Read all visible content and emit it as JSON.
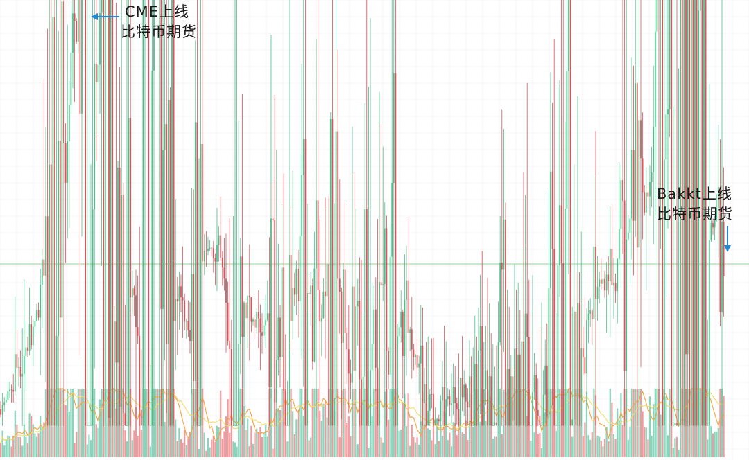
{
  "chart_data": {
    "type": "candlestick",
    "subtype": "price-candles-with-volume-bars",
    "title": "",
    "xlabel": "",
    "ylabel": "",
    "grid": true,
    "colors": {
      "up": "#4fbf8a",
      "down": "#e0525a",
      "volume_up": "#7ccfb4",
      "volume_down": "#ef8f94",
      "ma_fast": "#f4a340",
      "ma_slow": "#f0dc6a",
      "reference_line": "#8fd68f",
      "grid": "#eeeeee",
      "annotation_arrow": "#1e88d2"
    },
    "price_close_relative": [
      [
        0,
        0.04
      ],
      [
        10,
        0.06
      ],
      [
        18,
        0.1
      ],
      [
        28,
        0.16
      ],
      [
        38,
        0.19
      ],
      [
        48,
        0.22
      ],
      [
        58,
        0.3
      ],
      [
        66,
        0.26
      ],
      [
        75,
        0.34
      ],
      [
        85,
        0.44
      ],
      [
        93,
        0.56
      ],
      [
        100,
        0.76
      ],
      [
        105,
        0.92
      ],
      [
        112,
        0.98
      ],
      [
        118,
        0.94
      ],
      [
        125,
        0.82
      ],
      [
        132,
        0.74
      ],
      [
        140,
        0.81
      ],
      [
        148,
        0.76
      ],
      [
        155,
        0.62
      ],
      [
        162,
        0.54
      ],
      [
        170,
        0.44
      ],
      [
        178,
        0.38
      ],
      [
        186,
        0.3
      ],
      [
        192,
        0.32
      ],
      [
        198,
        0.4
      ],
      [
        206,
        0.5
      ],
      [
        214,
        0.52
      ],
      [
        222,
        0.5
      ],
      [
        230,
        0.52
      ],
      [
        238,
        0.46
      ],
      [
        246,
        0.4
      ],
      [
        254,
        0.38
      ],
      [
        262,
        0.28
      ],
      [
        270,
        0.26
      ],
      [
        280,
        0.28
      ],
      [
        290,
        0.36
      ],
      [
        300,
        0.42
      ],
      [
        310,
        0.44
      ],
      [
        320,
        0.42
      ],
      [
        330,
        0.36
      ],
      [
        340,
        0.34
      ],
      [
        350,
        0.3
      ],
      [
        362,
        0.26
      ],
      [
        374,
        0.24
      ],
      [
        386,
        0.22
      ],
      [
        398,
        0.23
      ],
      [
        410,
        0.24
      ],
      [
        420,
        0.32
      ],
      [
        432,
        0.36
      ],
      [
        444,
        0.32
      ],
      [
        456,
        0.26
      ],
      [
        466,
        0.22
      ],
      [
        478,
        0.24
      ],
      [
        490,
        0.28
      ],
      [
        502,
        0.24
      ],
      [
        515,
        0.22
      ],
      [
        530,
        0.24
      ],
      [
        545,
        0.24
      ],
      [
        560,
        0.23
      ],
      [
        575,
        0.22
      ],
      [
        590,
        0.22
      ],
      [
        598,
        0.18
      ],
      [
        605,
        0.12
      ],
      [
        612,
        0.08
      ],
      [
        620,
        0.05
      ],
      [
        628,
        0.01
      ],
      [
        636,
        0.03
      ],
      [
        645,
        0.06
      ],
      [
        655,
        0.08
      ],
      [
        668,
        0.08
      ],
      [
        680,
        0.07
      ],
      [
        692,
        0.06
      ],
      [
        705,
        0.05
      ],
      [
        718,
        0.06
      ],
      [
        730,
        0.07
      ],
      [
        742,
        0.09
      ],
      [
        755,
        0.08
      ],
      [
        768,
        0.09
      ],
      [
        780,
        0.1
      ],
      [
        790,
        0.11
      ],
      [
        800,
        0.14
      ],
      [
        812,
        0.16
      ],
      [
        825,
        0.16
      ],
      [
        836,
        0.18
      ],
      [
        846,
        0.22
      ],
      [
        855,
        0.3
      ],
      [
        864,
        0.34
      ],
      [
        872,
        0.35
      ],
      [
        880,
        0.38
      ],
      [
        888,
        0.34
      ],
      [
        896,
        0.36
      ],
      [
        904,
        0.42
      ],
      [
        910,
        0.54
      ],
      [
        916,
        0.66
      ],
      [
        922,
        0.6
      ],
      [
        930,
        0.58
      ],
      [
        940,
        0.55
      ],
      [
        948,
        0.46
      ],
      [
        956,
        0.44
      ],
      [
        964,
        0.5
      ],
      [
        972,
        0.58
      ],
      [
        980,
        0.57
      ],
      [
        988,
        0.48
      ],
      [
        996,
        0.48
      ],
      [
        1004,
        0.5
      ],
      [
        1012,
        0.46
      ],
      [
        1020,
        0.5
      ],
      [
        1028,
        0.49
      ],
      [
        1036,
        0.48
      ],
      [
        1044,
        0.45
      ]
    ],
    "annotations": [
      {
        "line1": "CME上线",
        "line2": "比特币期货",
        "arrow_direction": "left"
      },
      {
        "line1": "Bakkt上线",
        "line2": "比特币期货",
        "arrow_direction": "down"
      }
    ]
  }
}
